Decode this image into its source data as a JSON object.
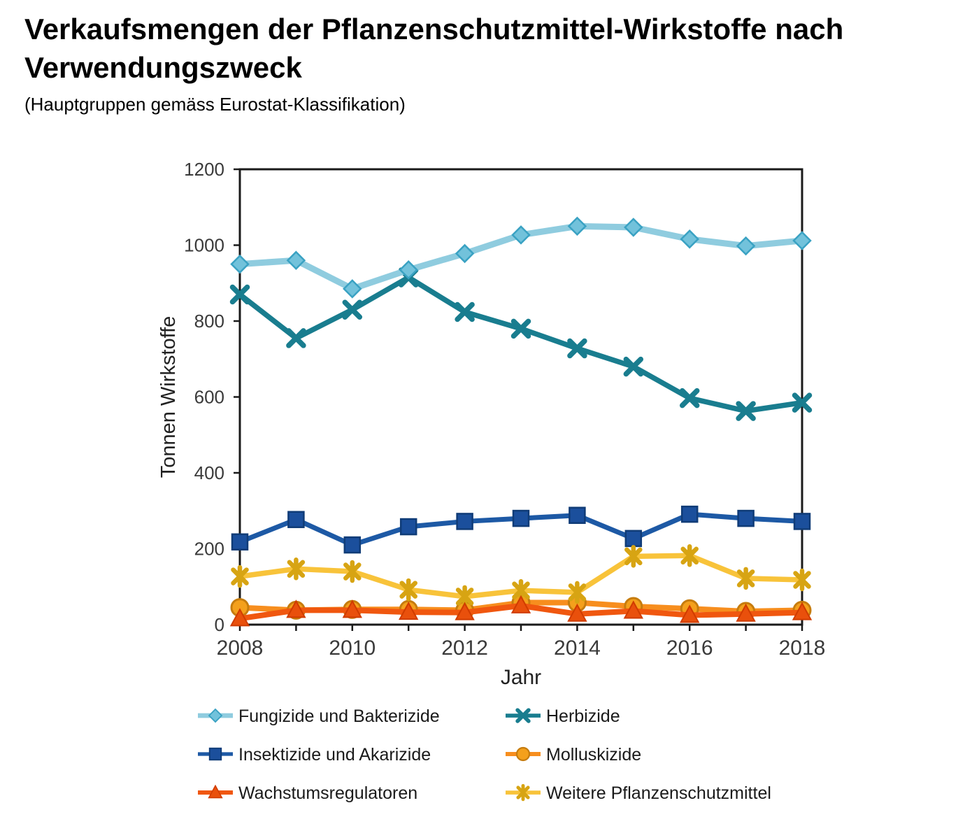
{
  "header": {
    "title_lines": [
      "Verkaufsmengen der Pflanzenschutzmittel-Wirkstoffe nach",
      "Verwendungszweck"
    ],
    "subtitle": "(Hauptgruppen gemäss Eurostat-Klassifikation)"
  },
  "chart_data": {
    "type": "line",
    "title": "",
    "xlabel": "Jahr",
    "ylabel": "Tonnen Wirkstoffe",
    "x": [
      2008,
      2009,
      2010,
      2011,
      2012,
      2013,
      2014,
      2015,
      2016,
      2017,
      2018
    ],
    "x_labeled_ticks": [
      2008,
      2010,
      2012,
      2014,
      2016,
      2018
    ],
    "ylim": [
      0,
      1200
    ],
    "y_ticks": [
      0,
      200,
      400,
      600,
      800,
      1000,
      1200
    ],
    "grid": false,
    "legend_position": "bottom",
    "axis_color": "#1a1a1a",
    "tick_label_color": "#3a3a3a",
    "series": [
      {
        "name": "Fungizide und Bakterizide",
        "marker": "diamond",
        "line_color": "#8fccdf",
        "marker_fill": "#72c2db",
        "marker_stroke": "#3aa2c3",
        "values": [
          950,
          960,
          885,
          935,
          978,
          1027,
          1050,
          1047,
          1016,
          998,
          1012
        ]
      },
      {
        "name": "Herbizide",
        "marker": "x",
        "line_color": "#197d8f",
        "marker_fill": "#197d8f",
        "marker_stroke": "#197d8f",
        "values": [
          870,
          755,
          830,
          915,
          824,
          780,
          728,
          680,
          597,
          563,
          585
        ]
      },
      {
        "name": "Insektizide und Akarizide",
        "marker": "square",
        "line_color": "#1d59a5",
        "marker_fill": "#1b4f9c",
        "marker_stroke": "#103c77",
        "values": [
          218,
          277,
          210,
          258,
          272,
          280,
          288,
          227,
          291,
          280,
          272
        ]
      },
      {
        "name": "Molluskizide",
        "marker": "circle",
        "line_color": "#f78e1e",
        "marker_fill": "#f4a01c",
        "marker_stroke": "#c67c0e",
        "values": [
          45,
          38,
          40,
          40,
          38,
          58,
          58,
          48,
          42,
          35,
          38
        ]
      },
      {
        "name": "Wachstumsregulatoren",
        "marker": "triangle",
        "line_color": "#f0570f",
        "marker_fill": "#e9500c",
        "marker_stroke": "#d03c00",
        "values": [
          16,
          38,
          38,
          33,
          32,
          50,
          28,
          36,
          25,
          28,
          32
        ]
      },
      {
        "name": "Weitere Pflanzenschutzmittel",
        "marker": "asterisk",
        "line_color": "#f8c33a",
        "marker_fill": "#d7a413",
        "marker_stroke": "#d7a413",
        "values": [
          127,
          147,
          140,
          92,
          74,
          90,
          85,
          180,
          182,
          122,
          118
        ]
      }
    ]
  }
}
